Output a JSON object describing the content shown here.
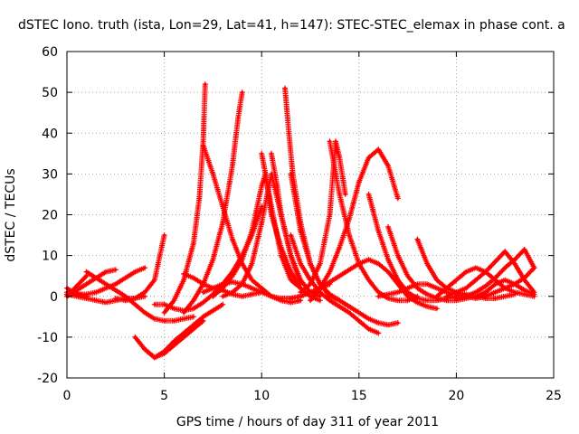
{
  "chart_data": {
    "type": "line",
    "title": "dSTEC Iono. truth (ista, Lon=29, Lat=41, h=147): STEC-STEC_elemax in phase cont. a",
    "xlabel": "GPS time / hours of day 311 of year 2011",
    "ylabel": "dSTEC  / TECUs",
    "xlim": [
      0,
      25
    ],
    "ylim": [
      -20,
      60
    ],
    "xticks": [
      0,
      5,
      10,
      15,
      20,
      25
    ],
    "yticks": [
      -20,
      -10,
      0,
      10,
      20,
      30,
      40,
      50,
      60
    ],
    "grid": true,
    "legend": "none",
    "marker": "plus",
    "color": "#ff0000",
    "series": [
      {
        "x": [
          0.0,
          0.3,
          0.7,
          1.0
        ],
        "y": [
          2.0,
          1.0,
          0.3,
          0.0
        ]
      },
      {
        "x": [
          0.0,
          0.5,
          1.0,
          1.5,
          2.0,
          2.5,
          3.0,
          3.5,
          4.0
        ],
        "y": [
          0.5,
          0.0,
          -0.5,
          -1.0,
          -1.5,
          -1.0,
          -0.5,
          -0.5,
          0.0
        ]
      },
      {
        "x": [
          0.0,
          0.4,
          0.8,
          1.0
        ],
        "y": [
          0.0,
          2.0,
          4.0,
          5.0
        ]
      },
      {
        "x": [
          0.0,
          0.5,
          1.0,
          1.5,
          2.0,
          2.5
        ],
        "y": [
          0.0,
          1.5,
          3.0,
          4.5,
          6.0,
          6.5
        ]
      },
      {
        "x": [
          0.0,
          0.5,
          1.0,
          1.5,
          2.0,
          2.5,
          3.0,
          3.5,
          4.0
        ],
        "y": [
          1.0,
          0.5,
          0.5,
          1.0,
          2.0,
          3.0,
          4.5,
          6.0,
          7.0
        ]
      },
      {
        "x": [
          1.0,
          1.5,
          2.0,
          2.5,
          3.0,
          3.5,
          4.0,
          4.5,
          5.0,
          5.5,
          6.0,
          6.5
        ],
        "y": [
          6.0,
          4.5,
          3.0,
          1.5,
          0.0,
          -2.0,
          -4.0,
          -5.5,
          -6.0,
          -6.0,
          -5.5,
          -5.0
        ]
      },
      {
        "x": [
          2.5,
          3.0,
          3.5,
          4.0,
          4.5,
          5.0
        ],
        "y": [
          -0.5,
          -1.0,
          -0.5,
          1.0,
          4.0,
          15.0
        ]
      },
      {
        "x": [
          3.5,
          4.0,
          4.5,
          5.0,
          5.5,
          6.0,
          6.5,
          7.0
        ],
        "y": [
          -10.0,
          -13.0,
          -15.0,
          -14.0,
          -12.0,
          -10.0,
          -8.0,
          -6.0
        ]
      },
      {
        "x": [
          4.0,
          4.5,
          5.0,
          5.5,
          6.0,
          6.5,
          7.0,
          7.5,
          8.0
        ],
        "y": [
          -13.0,
          -15.0,
          -13.5,
          -11.0,
          -9.0,
          -7.0,
          -5.0,
          -3.5,
          -2.0
        ]
      },
      {
        "x": [
          4.5,
          5.0,
          5.5,
          6.0,
          6.5,
          7.0,
          7.5,
          8.0,
          8.5,
          9.0,
          9.5,
          10.0
        ],
        "y": [
          -2.0,
          -2.0,
          -3.0,
          -3.5,
          -3.0,
          -1.5,
          0.5,
          3.0,
          6.0,
          10.0,
          15.0,
          22.0
        ]
      },
      {
        "x": [
          5.0,
          5.5,
          6.0,
          6.5,
          6.8,
          7.0,
          7.1
        ],
        "y": [
          -4.0,
          -1.0,
          4.0,
          13.0,
          24.0,
          38.0,
          52.0
        ]
      },
      {
        "x": [
          6.0,
          6.5,
          7.0,
          7.5,
          8.0,
          8.5,
          8.8,
          9.0
        ],
        "y": [
          -4.0,
          -1.0,
          3.0,
          9.0,
          18.0,
          32.0,
          44.0,
          50.0
        ]
      },
      {
        "x": [
          6.0,
          6.5,
          7.0,
          7.5,
          8.0,
          8.5,
          9.0,
          9.5,
          10.0
        ],
        "y": [
          5.5,
          4.5,
          3.0,
          2.0,
          1.5,
          0.5,
          0.0,
          0.5,
          1.0
        ]
      },
      {
        "x": [
          7.0,
          7.5,
          8.0,
          8.5,
          9.0,
          9.5,
          10.0,
          10.5,
          11.0,
          11.5,
          12.0,
          12.5,
          13.0,
          13.5
        ],
        "y": [
          1.0,
          2.0,
          3.0,
          3.5,
          3.0,
          2.0,
          1.0,
          0.0,
          -0.5,
          -0.5,
          0.0,
          1.0,
          2.0,
          3.0
        ]
      },
      {
        "x": [
          7.0,
          7.5,
          8.0,
          8.5,
          9.0,
          9.5,
          10.0,
          10.5,
          11.0,
          11.5,
          12.0
        ],
        "y": [
          37.0,
          30.0,
          22.0,
          14.0,
          8.0,
          4.0,
          2.0,
          0.0,
          -1.0,
          -1.5,
          -1.0
        ]
      },
      {
        "x": [
          7.5,
          8.0,
          8.5,
          9.0,
          9.5,
          10.0,
          10.2,
          10.5,
          11.0,
          11.5,
          12.0
        ],
        "y": [
          0.0,
          2.0,
          5.0,
          9.0,
          16.0,
          27.0,
          30.0,
          22.0,
          10.0,
          4.0,
          2.0
        ]
      },
      {
        "x": [
          8.0,
          8.5,
          9.0,
          9.5,
          10.0,
          10.5,
          11.0,
          11.5,
          12.0
        ],
        "y": [
          0.0,
          1.0,
          3.0,
          8.0,
          18.0,
          30.0,
          20.0,
          10.0,
          3.0
        ]
      },
      {
        "x": [
          10.0,
          10.2,
          10.5,
          11.0,
          11.5,
          12.0,
          12.5,
          13.0
        ],
        "y": [
          35.0,
          30.0,
          20.0,
          12.0,
          6.0,
          2.0,
          0.0,
          -1.0
        ]
      },
      {
        "x": [
          10.5,
          10.8,
          11.0,
          11.5,
          12.0,
          12.5,
          13.0
        ],
        "y": [
          35.0,
          27.0,
          20.0,
          10.0,
          4.0,
          1.0,
          0.0
        ]
      },
      {
        "x": [
          11.2,
          11.4,
          11.6,
          12.0,
          12.5,
          13.0,
          13.5,
          14.0
        ],
        "y": [
          51.0,
          40.0,
          30.0,
          18.0,
          8.0,
          3.0,
          0.0,
          -1.0
        ]
      },
      {
        "x": [
          11.5,
          12.0,
          12.5,
          13.0,
          13.5,
          14.0,
          14.5,
          15.0,
          15.5,
          16.0,
          16.5,
          17.0
        ],
        "y": [
          30.0,
          16.0,
          8.0,
          3.0,
          0.5,
          -1.0,
          -2.5,
          -4.0,
          -5.5,
          -6.5,
          -7.0,
          -6.5
        ]
      },
      {
        "x": [
          11.5,
          12.0,
          12.5,
          13.0,
          13.5,
          14.0,
          14.5,
          15.0,
          15.5,
          16.0
        ],
        "y": [
          15.0,
          8.0,
          4.0,
          1.0,
          -1.0,
          -2.5,
          -4.0,
          -6.0,
          -8.0,
          -9.0
        ]
      },
      {
        "x": [
          11.0,
          11.5,
          12.0,
          12.5,
          13.0,
          13.5,
          14.0,
          14.5,
          15.0,
          15.5,
          16.0,
          16.5,
          17.0,
          17.5,
          18.0,
          18.5,
          19.0
        ],
        "y": [
          -0.5,
          -0.5,
          0.0,
          1.0,
          2.0,
          3.5,
          5.0,
          6.5,
          8.0,
          9.0,
          8.0,
          6.0,
          3.0,
          0.0,
          -1.5,
          -2.5,
          -3.0
        ]
      },
      {
        "x": [
          12.0,
          12.5,
          13.0,
          13.5,
          13.8,
          14.0,
          14.3
        ],
        "y": [
          1.0,
          3.0,
          8.0,
          20.0,
          38.0,
          34.0,
          25.0
        ]
      },
      {
        "x": [
          13.5,
          14.0,
          14.5,
          15.0,
          15.5,
          16.0,
          16.5,
          17.0,
          17.5,
          18.0
        ],
        "y": [
          38.0,
          25.0,
          15.0,
          8.0,
          4.0,
          1.0,
          -0.5,
          -1.0,
          -1.0,
          0.0
        ]
      },
      {
        "x": [
          12.5,
          13.0,
          13.5,
          14.0,
          14.5,
          15.0,
          15.5,
          16.0,
          16.5,
          17.0
        ],
        "y": [
          -1.0,
          2.0,
          6.0,
          12.0,
          19.0,
          28.0,
          34.0,
          36.0,
          32.0,
          24.0
        ]
      },
      {
        "x": [
          15.5,
          16.0,
          16.5,
          17.0,
          17.5,
          18.0,
          18.5,
          19.0,
          19.5,
          20.0
        ],
        "y": [
          25.0,
          16.0,
          9.0,
          4.0,
          1.0,
          -0.5,
          -1.0,
          -1.0,
          -0.5,
          0.0
        ]
      },
      {
        "x": [
          16.0,
          16.5,
          17.0,
          17.5,
          18.0,
          18.5,
          19.0,
          19.5,
          20.0,
          20.5
        ],
        "y": [
          0.0,
          0.5,
          1.0,
          2.0,
          3.0,
          3.0,
          2.0,
          1.0,
          0.5,
          0.0
        ]
      },
      {
        "x": [
          16.5,
          17.0,
          17.5,
          18.0,
          18.5,
          19.0,
          19.5,
          20.0,
          20.5,
          21.0,
          21.5
        ],
        "y": [
          17.0,
          10.0,
          5.0,
          2.0,
          0.5,
          -0.5,
          -1.0,
          -1.0,
          -0.5,
          0.0,
          0.5
        ]
      },
      {
        "x": [
          18.0,
          18.5,
          19.0,
          19.5,
          20.0,
          20.5,
          21.0,
          21.5,
          22.0,
          22.5,
          23.0
        ],
        "y": [
          14.0,
          8.0,
          4.0,
          2.0,
          1.0,
          0.5,
          0.0,
          -0.5,
          -0.5,
          0.0,
          0.5
        ]
      },
      {
        "x": [
          19.0,
          19.5,
          20.0,
          20.5,
          21.0,
          21.5,
          22.0,
          22.5,
          23.0,
          23.5,
          24.0
        ],
        "y": [
          0.0,
          2.0,
          4.0,
          6.0,
          7.0,
          6.0,
          4.0,
          2.0,
          1.0,
          0.5,
          0.0
        ]
      },
      {
        "x": [
          19.5,
          20.0,
          20.5,
          21.0,
          21.5,
          22.0,
          22.5,
          23.0,
          23.5,
          24.0
        ],
        "y": [
          0.0,
          1.0,
          2.0,
          4.0,
          6.0,
          8.5,
          11.0,
          8.0,
          4.0,
          1.0
        ]
      },
      {
        "x": [
          20.0,
          20.5,
          21.0,
          21.5,
          22.0,
          22.5,
          23.0,
          23.5,
          24.0
        ],
        "y": [
          -0.5,
          0.0,
          1.0,
          2.5,
          4.5,
          7.0,
          9.0,
          11.5,
          7.0
        ]
      },
      {
        "x": [
          20.5,
          21.0,
          21.5,
          22.0,
          22.5,
          23.0,
          23.5,
          24.0
        ],
        "y": [
          0.0,
          -0.5,
          0.0,
          1.0,
          2.0,
          3.0,
          4.5,
          7.0
        ]
      },
      {
        "x": [
          21.0,
          21.5,
          22.0,
          22.5,
          23.0,
          23.5,
          24.0
        ],
        "y": [
          0.0,
          1.0,
          3.0,
          4.0,
          3.0,
          1.5,
          0.5
        ]
      }
    ]
  }
}
